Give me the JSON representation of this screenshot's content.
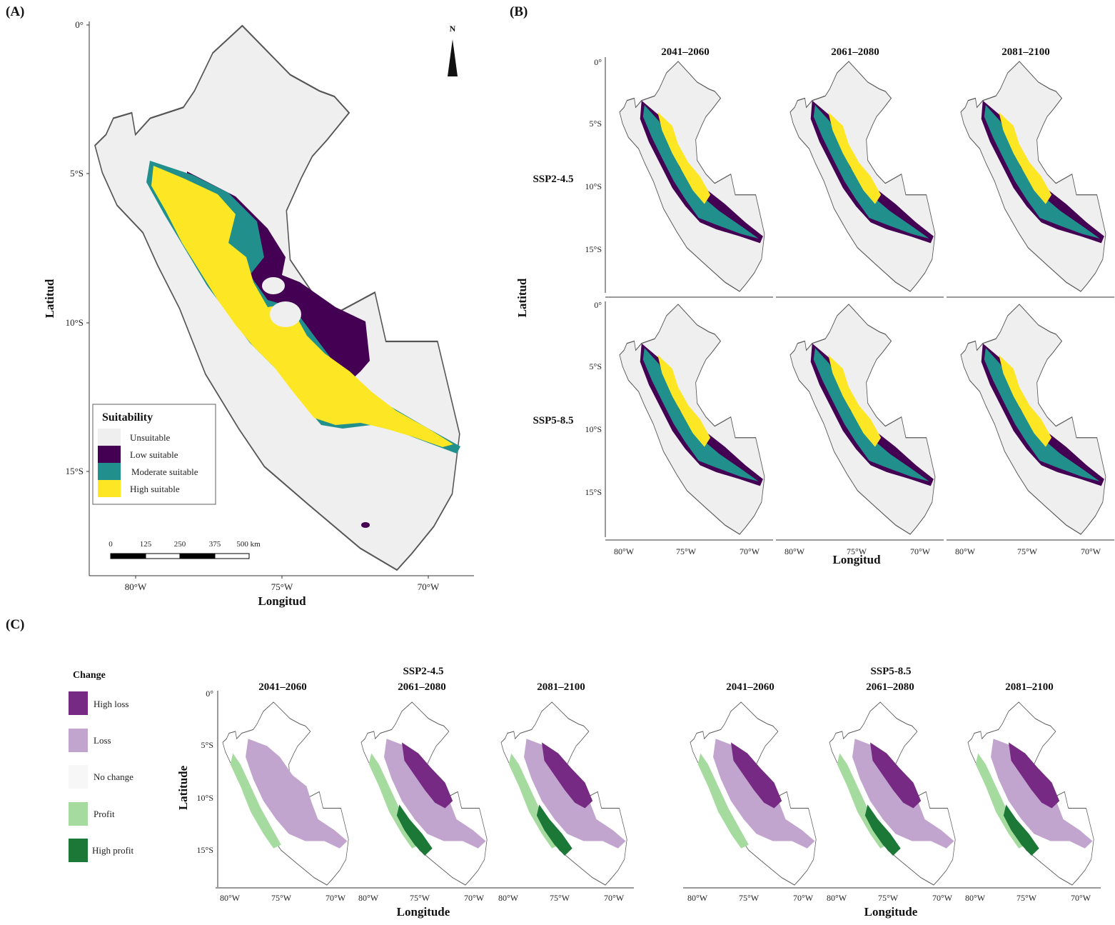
{
  "panel_labels": {
    "a": "(A)",
    "b": "(B)",
    "c": "(C)"
  },
  "colors": {
    "unsuitable": "#efefef",
    "low": "#440154",
    "moderate": "#21908c",
    "high": "#fde725",
    "high_loss": "#762a83",
    "loss": "#c2a5cf",
    "no_change": "#f7f7f7",
    "profit": "#a6dba0",
    "high_profit": "#1b7837",
    "outline": "#555555"
  },
  "panel_a": {
    "x_axis_title": "Longitud",
    "y_axis_title": "Latitud",
    "x_ticks": [
      "80°W",
      "75°W",
      "70°W"
    ],
    "y_ticks": [
      "0°",
      "5°S",
      "10°S",
      "15°S"
    ],
    "north_label": "N",
    "legend": {
      "title": "Suitability",
      "items": [
        {
          "key": "unsuitable",
          "label": "Unsuitable"
        },
        {
          "key": "low",
          "label": "Low suitable"
        },
        {
          "key": "moderate",
          "label": "Moderate suitable"
        },
        {
          "key": "high",
          "label": "High suitable"
        }
      ]
    },
    "scale_bar": {
      "labels": [
        "0",
        "125",
        "250",
        "375",
        "500 km"
      ]
    }
  },
  "panel_b": {
    "x_axis_title": "Longitud",
    "y_axis_title": "Latitud",
    "periods": [
      "2041–2060",
      "2061–2080",
      "2081–2100"
    ],
    "scenarios": [
      "SSP2-4.5",
      "SSP5-8.5"
    ],
    "x_ticks": [
      "80°W",
      "75°W",
      "70°W"
    ],
    "y_ticks": [
      "0°",
      "5°S",
      "10°S",
      "15°S"
    ]
  },
  "panel_c": {
    "x_axis_title": "Longitude",
    "y_axis_title": "Latitude",
    "scenarios": [
      "SSP2-4.5",
      "SSP5-8.5"
    ],
    "periods": [
      "2041–2060",
      "2061–2080",
      "2081–2100"
    ],
    "x_ticks": [
      "80°W",
      "75°W",
      "70°W"
    ],
    "y_ticks": [
      "0°",
      "5°S",
      "10°S",
      "15°S"
    ],
    "legend": {
      "title": "Change",
      "items": [
        {
          "key": "high_loss",
          "label": "High loss"
        },
        {
          "key": "loss",
          "label": "Loss"
        },
        {
          "key": "no_change",
          "label": "No change"
        },
        {
          "key": "profit",
          "label": "Profit"
        },
        {
          "key": "high_profit",
          "label": "High profit"
        }
      ]
    }
  }
}
